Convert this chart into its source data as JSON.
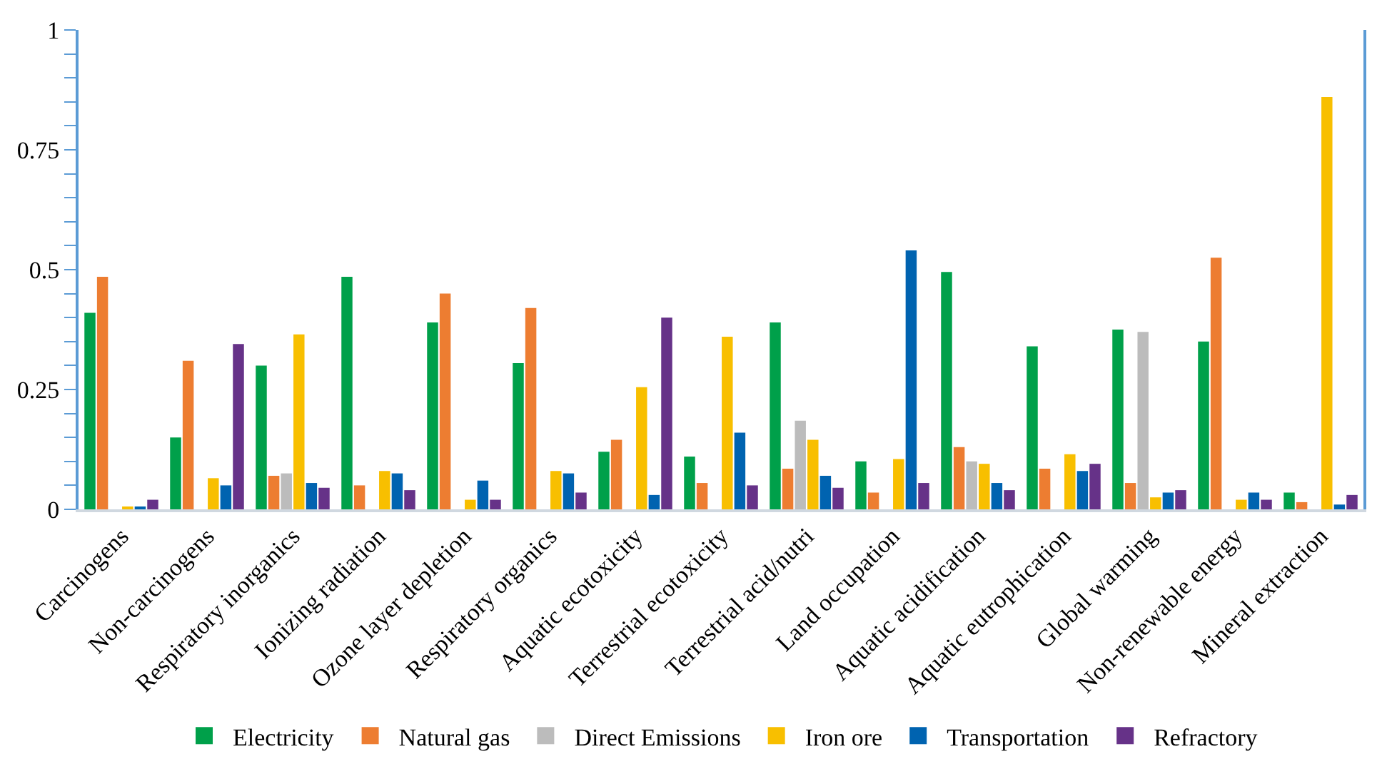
{
  "chart_data": {
    "type": "bar",
    "categories": [
      "Carcinogens",
      "Non-carcinogens",
      "Respiratory inorganics",
      "Ionizing radiation",
      "Ozone layer depletion",
      "Respiratory organics",
      "Aquatic ecotoxicity",
      "Terrestrial ecotoxicity",
      "Terrestrial acid/nutri",
      "Land occupation",
      "Aquatic acidification",
      "Aquatic eutrophication",
      "Global warming",
      "Non-renewable energy",
      "Mineral extraction"
    ],
    "series": [
      {
        "name": "Electricity",
        "color": "#00a04a",
        "values": [
          0.41,
          0.15,
          0.3,
          0.485,
          0.39,
          0.305,
          0.12,
          0.11,
          0.39,
          0.1,
          0.495,
          0.34,
          0.375,
          0.35,
          0.035
        ]
      },
      {
        "name": "Natural gas",
        "color": "#ed7d31",
        "values": [
          0.485,
          0.31,
          0.07,
          0.05,
          0.45,
          0.42,
          0.145,
          0.055,
          0.085,
          0.035,
          0.13,
          0.085,
          0.055,
          0.525,
          0.015
        ]
      },
      {
        "name": "Direct Emissions",
        "color": "#bcbcbc",
        "values": [
          0,
          0,
          0.075,
          0,
          0,
          0,
          0,
          0,
          0.185,
          0,
          0.1,
          0,
          0.37,
          0,
          0
        ]
      },
      {
        "name": "Iron ore",
        "color": "#f8bf00",
        "values": [
          0.005,
          0.065,
          0.365,
          0.08,
          0.02,
          0.08,
          0.255,
          0.36,
          0.145,
          0.105,
          0.095,
          0.115,
          0.025,
          0.02,
          0.86
        ]
      },
      {
        "name": "Transportation",
        "color": "#0063b0",
        "values": [
          0.005,
          0.05,
          0.055,
          0.075,
          0.06,
          0.075,
          0.03,
          0.16,
          0.07,
          0.54,
          0.055,
          0.08,
          0.035,
          0.035,
          0.01
        ]
      },
      {
        "name": "Refractory",
        "color": "#663288",
        "values": [
          0.02,
          0.345,
          0.045,
          0.04,
          0.02,
          0.035,
          0.4,
          0.05,
          0.045,
          0.055,
          0.04,
          0.095,
          0.04,
          0.02,
          0.03
        ]
      }
    ],
    "ylim": [
      0,
      1
    ],
    "yticks": [
      0,
      0.25,
      0.5,
      0.75,
      1
    ],
    "legend": "bottom"
  }
}
